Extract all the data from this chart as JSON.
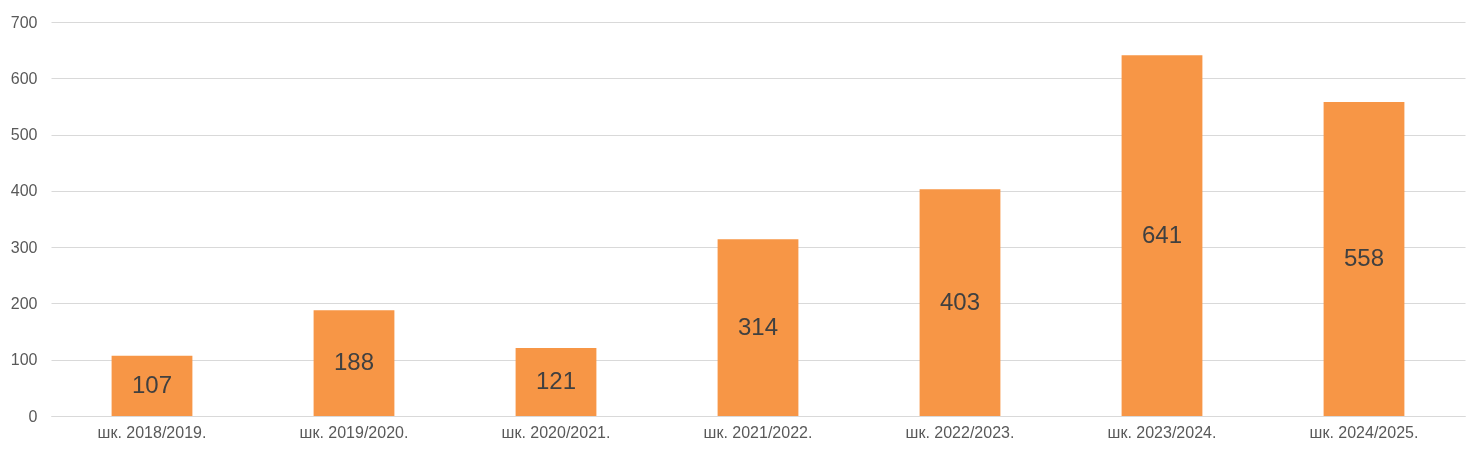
{
  "chart_data": {
    "type": "bar",
    "categories": [
      "шк. 2018/2019.",
      "шк. 2019/2020.",
      "шк. 2020/2021.",
      "шк. 2021/2022.",
      "шк. 2022/2023.",
      "шк. 2023/2024.",
      "шк. 2024/2025."
    ],
    "values": [
      107,
      188,
      121,
      314,
      403,
      641,
      558
    ],
    "color": "#f79646",
    "ylim": [
      0,
      700
    ],
    "yticks": [
      0,
      100,
      200,
      300,
      400,
      500,
      600,
      700
    ],
    "grid": "y",
    "data_labels": true
  }
}
